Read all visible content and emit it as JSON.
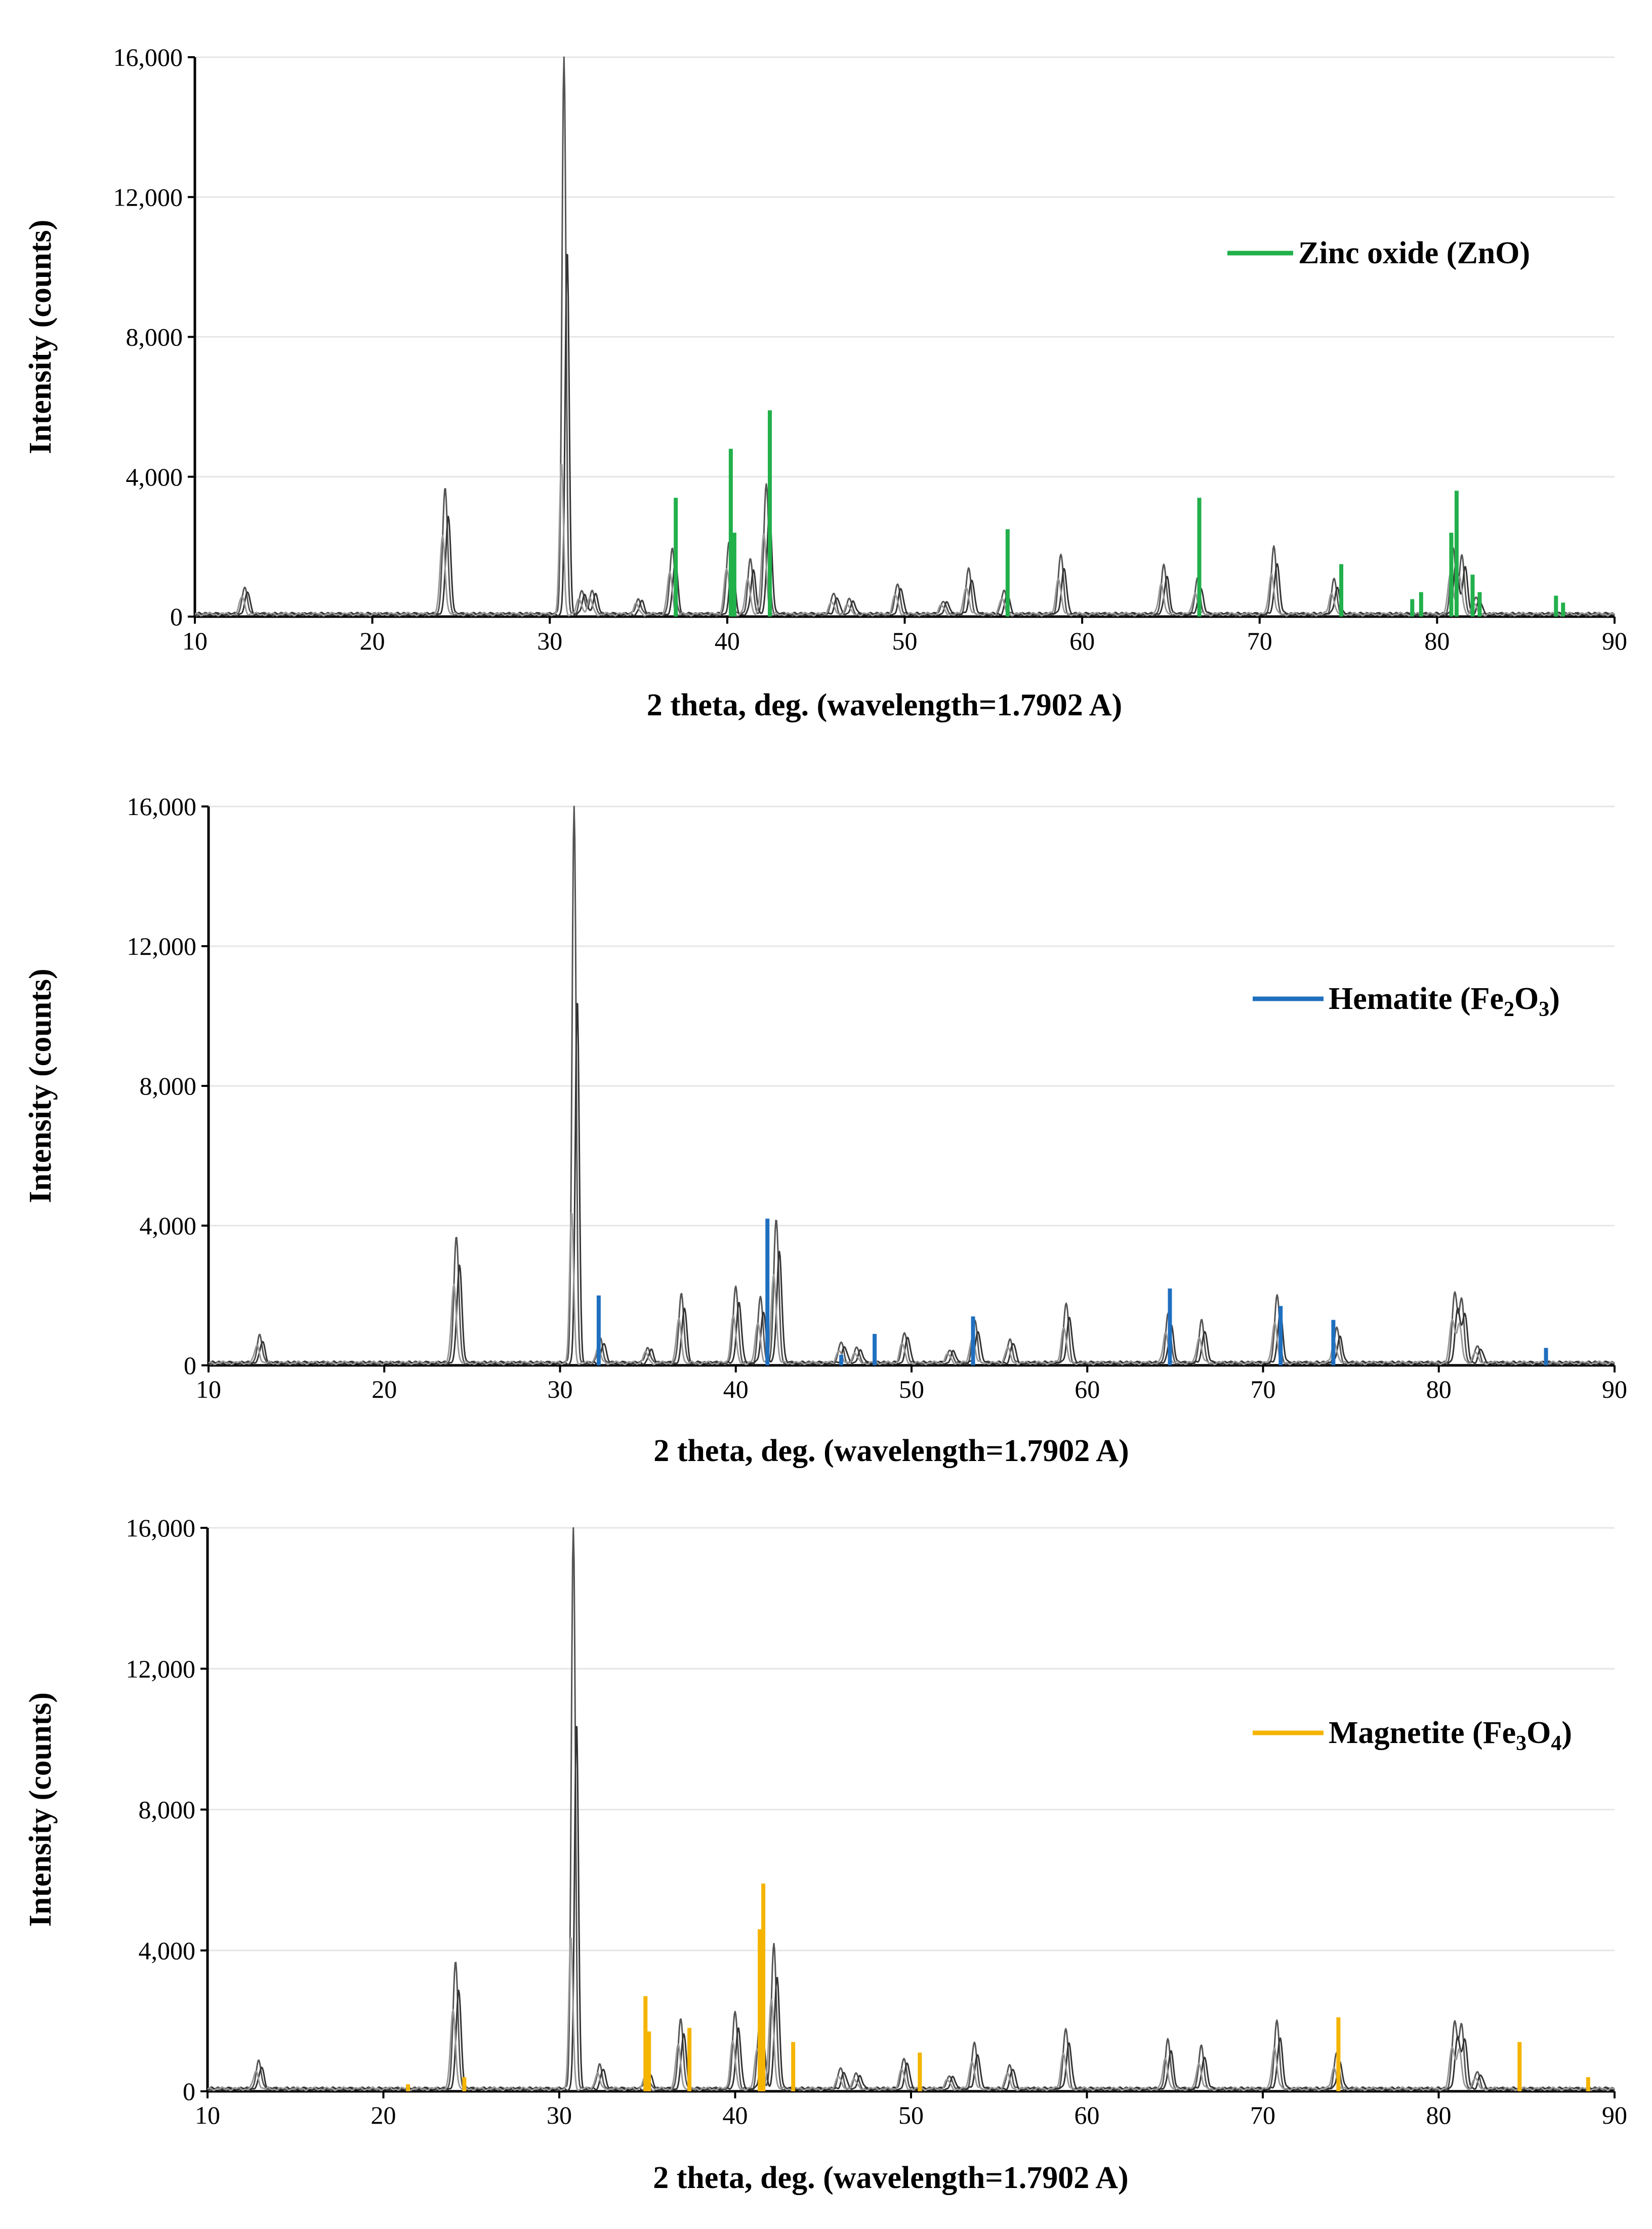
{
  "chart_data": [
    {
      "type": "line",
      "panel": 1,
      "xlabel": "2 theta, deg. (wavelength=1.7902 A)",
      "ylabel": "Intensity (counts)",
      "xlim": [
        10,
        90
      ],
      "ylim": [
        0,
        16000
      ],
      "x_ticks": [
        "10",
        "20",
        "30",
        "40",
        "50",
        "60",
        "70",
        "80",
        "90"
      ],
      "y_ticks": [
        "0",
        "4,000",
        "8,000",
        "12,000",
        "16,000"
      ],
      "grid": true,
      "legend": {
        "label": "Zinc oxide (ZnO)",
        "main": "Zinc oxide (ZnO)",
        "parts": [],
        "color": "#22b04b",
        "position": "top-right"
      },
      "reference_peaks": [
        {
          "x": 37.1,
          "y": 3400
        },
        {
          "x": 40.2,
          "y": 4800
        },
        {
          "x": 40.4,
          "y": 2400
        },
        {
          "x": 42.4,
          "y": 5900
        },
        {
          "x": 55.8,
          "y": 2500
        },
        {
          "x": 66.6,
          "y": 3400
        },
        {
          "x": 74.6,
          "y": 1500
        },
        {
          "x": 78.6,
          "y": 500
        },
        {
          "x": 79.1,
          "y": 700
        },
        {
          "x": 80.8,
          "y": 2400
        },
        {
          "x": 81.1,
          "y": 3600
        },
        {
          "x": 82.0,
          "y": 1200
        },
        {
          "x": 82.4,
          "y": 700
        },
        {
          "x": 86.7,
          "y": 600
        },
        {
          "x": 87.1,
          "y": 400
        }
      ],
      "measured_peaks": [
        {
          "x": 12.8,
          "y": 800
        },
        {
          "x": 24.1,
          "y": 3600
        },
        {
          "x": 30.8,
          "y": 16000
        },
        {
          "x": 31.8,
          "y": 700
        },
        {
          "x": 32.4,
          "y": 700
        },
        {
          "x": 35.0,
          "y": 450
        },
        {
          "x": 36.9,
          "y": 1900
        },
        {
          "x": 40.1,
          "y": 2100
        },
        {
          "x": 41.3,
          "y": 1600
        },
        {
          "x": 42.2,
          "y": 3700
        },
        {
          "x": 46.0,
          "y": 600
        },
        {
          "x": 46.9,
          "y": 450
        },
        {
          "x": 49.6,
          "y": 900
        },
        {
          "x": 52.2,
          "y": 400
        },
        {
          "x": 53.6,
          "y": 1300
        },
        {
          "x": 55.6,
          "y": 700
        },
        {
          "x": 58.8,
          "y": 1700
        },
        {
          "x": 64.6,
          "y": 1400
        },
        {
          "x": 66.5,
          "y": 1000
        },
        {
          "x": 70.8,
          "y": 1900
        },
        {
          "x": 74.2,
          "y": 1000
        },
        {
          "x": 80.9,
          "y": 1900
        },
        {
          "x": 81.4,
          "y": 1700
        },
        {
          "x": 82.2,
          "y": 500
        }
      ]
    },
    {
      "type": "line",
      "panel": 2,
      "xlabel": "2 theta, deg. (wavelength=1.7902 A)",
      "ylabel": "Intensity (counts)",
      "xlim": [
        10,
        90
      ],
      "ylim": [
        0,
        16000
      ],
      "x_ticks": [
        "10",
        "20",
        "30",
        "40",
        "50",
        "60",
        "70",
        "80",
        "90"
      ],
      "y_ticks": [
        "0",
        "4,000",
        "8,000",
        "12,000",
        "16,000"
      ],
      "grid": true,
      "legend": {
        "label": "Hematite (Fe2O3)",
        "main": "Hematite (Fe",
        "parts": [
          "2",
          "O",
          "3",
          ")"
        ],
        "color": "#1f6fbf",
        "position": "top-right"
      },
      "reference_peaks": [
        {
          "x": 32.2,
          "y": 2000
        },
        {
          "x": 41.8,
          "y": 4200
        },
        {
          "x": 46.0,
          "y": 300
        },
        {
          "x": 47.9,
          "y": 900
        },
        {
          "x": 53.5,
          "y": 1400
        },
        {
          "x": 64.7,
          "y": 2200
        },
        {
          "x": 71.0,
          "y": 1700
        },
        {
          "x": 74.0,
          "y": 1300
        },
        {
          "x": 86.1,
          "y": 500
        }
      ],
      "measured_peaks": [
        {
          "x": 12.9,
          "y": 800
        },
        {
          "x": 24.1,
          "y": 3600
        },
        {
          "x": 30.8,
          "y": 16000
        },
        {
          "x": 32.3,
          "y": 700
        },
        {
          "x": 35.0,
          "y": 450
        },
        {
          "x": 36.9,
          "y": 2000
        },
        {
          "x": 40.0,
          "y": 2200
        },
        {
          "x": 41.4,
          "y": 1900
        },
        {
          "x": 42.3,
          "y": 4100
        },
        {
          "x": 46.0,
          "y": 600
        },
        {
          "x": 46.9,
          "y": 450
        },
        {
          "x": 49.6,
          "y": 900
        },
        {
          "x": 52.2,
          "y": 400
        },
        {
          "x": 53.6,
          "y": 1200
        },
        {
          "x": 55.6,
          "y": 700
        },
        {
          "x": 58.8,
          "y": 1700
        },
        {
          "x": 64.6,
          "y": 1400
        },
        {
          "x": 66.5,
          "y": 1200
        },
        {
          "x": 70.8,
          "y": 1900
        },
        {
          "x": 74.2,
          "y": 1000
        },
        {
          "x": 80.9,
          "y": 2000
        },
        {
          "x": 81.3,
          "y": 1800
        },
        {
          "x": 82.2,
          "y": 500
        }
      ]
    },
    {
      "type": "line",
      "panel": 3,
      "xlabel": "2 theta, deg. (wavelength=1.7902 A)",
      "ylabel": "Intensity (counts)",
      "xlim": [
        10,
        90
      ],
      "ylim": [
        0,
        16000
      ],
      "x_ticks": [
        "10",
        "20",
        "30",
        "40",
        "50",
        "60",
        "70",
        "80",
        "90"
      ],
      "y_ticks": [
        "0",
        "4,000",
        "8,000",
        "12,000",
        "16,000"
      ],
      "grid": true,
      "legend": {
        "label": "Magnetite (Fe3O4)",
        "main": "Magnetite (Fe",
        "parts": [
          "3",
          "O",
          "4",
          ")"
        ],
        "color": "#f5b400",
        "position": "top-right"
      },
      "reference_peaks": [
        {
          "x": 21.4,
          "y": 200
        },
        {
          "x": 24.6,
          "y": 400
        },
        {
          "x": 34.9,
          "y": 2700
        },
        {
          "x": 35.1,
          "y": 1700
        },
        {
          "x": 37.4,
          "y": 1800
        },
        {
          "x": 41.4,
          "y": 4600
        },
        {
          "x": 41.6,
          "y": 5900
        },
        {
          "x": 43.3,
          "y": 1400
        },
        {
          "x": 50.5,
          "y": 1100
        },
        {
          "x": 74.3,
          "y": 2100
        },
        {
          "x": 84.6,
          "y": 1400
        },
        {
          "x": 88.5,
          "y": 400
        }
      ],
      "measured_peaks": [
        {
          "x": 12.9,
          "y": 800
        },
        {
          "x": 24.1,
          "y": 3600
        },
        {
          "x": 30.8,
          "y": 16000
        },
        {
          "x": 32.3,
          "y": 700
        },
        {
          "x": 35.0,
          "y": 450
        },
        {
          "x": 36.9,
          "y": 2000
        },
        {
          "x": 40.0,
          "y": 2200
        },
        {
          "x": 41.4,
          "y": 1900
        },
        {
          "x": 42.2,
          "y": 4100
        },
        {
          "x": 46.0,
          "y": 600
        },
        {
          "x": 46.9,
          "y": 450
        },
        {
          "x": 49.6,
          "y": 900
        },
        {
          "x": 52.2,
          "y": 400
        },
        {
          "x": 53.6,
          "y": 1300
        },
        {
          "x": 55.6,
          "y": 700
        },
        {
          "x": 58.8,
          "y": 1700
        },
        {
          "x": 64.6,
          "y": 1400
        },
        {
          "x": 66.5,
          "y": 1200
        },
        {
          "x": 70.8,
          "y": 1900
        },
        {
          "x": 74.2,
          "y": 1000
        },
        {
          "x": 80.9,
          "y": 1900
        },
        {
          "x": 81.3,
          "y": 1800
        },
        {
          "x": 82.2,
          "y": 500
        }
      ]
    }
  ]
}
